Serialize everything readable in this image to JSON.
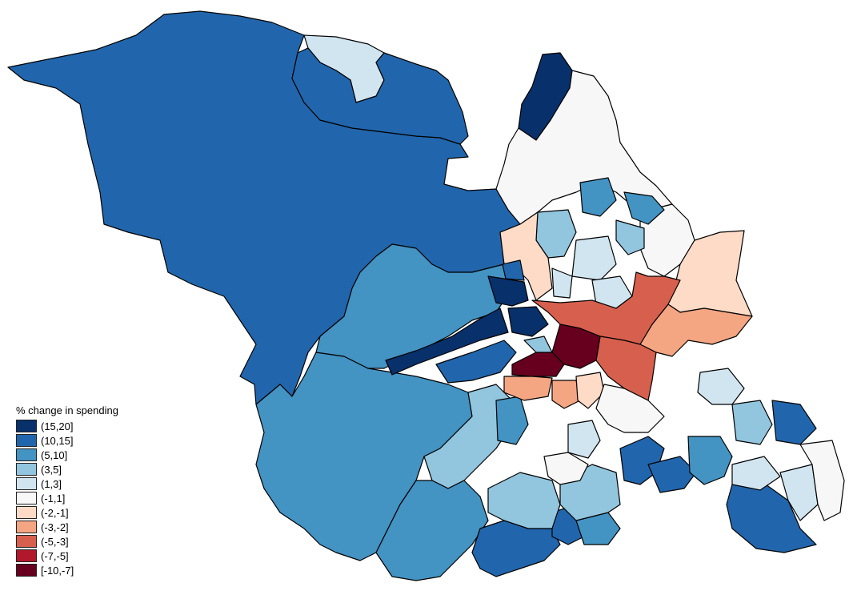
{
  "legend": {
    "title": "% change in spending",
    "entries": [
      {
        "label": "(15,20]",
        "color": "#08306b"
      },
      {
        "label": "(10,15]",
        "color": "#2166ac"
      },
      {
        "label": "(5,10]",
        "color": "#4393c3"
      },
      {
        "label": "(3,5]",
        "color": "#92c5de"
      },
      {
        "label": "(1,3]",
        "color": "#d1e5f0"
      },
      {
        "label": "(-1,1]",
        "color": "#f7f7f7"
      },
      {
        "label": "(-2,-1]",
        "color": "#fddbc7"
      },
      {
        "label": "(-3,-2]",
        "color": "#f4a582"
      },
      {
        "label": "(-5,-3]",
        "color": "#d6604d"
      },
      {
        "label": "(-7,-5]",
        "color": "#b2182b"
      },
      {
        "label": "[-10,-7]",
        "color": "#67001f"
      }
    ]
  },
  "map": {
    "regions": [
      {
        "name": "north-west-moorland",
        "class": "(10,15]"
      },
      {
        "name": "north-enclave",
        "class": "(1,3]"
      },
      {
        "name": "north-enclave-inner",
        "class": "(10,15]"
      },
      {
        "name": "north-east-strip",
        "class": "(15,20]"
      },
      {
        "name": "north-east-white",
        "class": "(-1,1]"
      },
      {
        "name": "east-white",
        "class": "(-1,1]"
      },
      {
        "name": "south-west-large",
        "class": "(5,10]"
      },
      {
        "name": "west-central-mid",
        "class": "(5,10]"
      },
      {
        "name": "south-central-light",
        "class": "(3,5]"
      },
      {
        "name": "south-central-medium",
        "class": "(5,10]"
      },
      {
        "name": "south-east-dark-a",
        "class": "(10,15]"
      },
      {
        "name": "south-east-dark-b",
        "class": "(10,15]"
      },
      {
        "name": "far-south-east",
        "class": "(10,15]"
      },
      {
        "name": "east-light",
        "class": "(1,3]"
      },
      {
        "name": "east-light-2",
        "class": "(3,5]"
      },
      {
        "name": "east-mid",
        "class": "(5,10]"
      },
      {
        "name": "east-dark",
        "class": "(10,15]"
      },
      {
        "name": "north-central-mid",
        "class": "(5,10]"
      },
      {
        "name": "north-central-light",
        "class": "(3,5]"
      },
      {
        "name": "north-central-pale",
        "class": "(1,3]"
      },
      {
        "name": "north-central-pale-2",
        "class": "(1,3]"
      },
      {
        "name": "north-west-peach",
        "class": "(-2,-1]"
      },
      {
        "name": "east-peach",
        "class": "(-2,-1]"
      },
      {
        "name": "east-salmon",
        "class": "(-3,-2]"
      },
      {
        "name": "central-red",
        "class": "(-5,-3]"
      },
      {
        "name": "central-red-2",
        "class": "(-5,-3]"
      },
      {
        "name": "city-centre-darkest",
        "class": "[-10,-7]"
      },
      {
        "name": "city-centre-darkest-2",
        "class": "[-10,-7]"
      },
      {
        "name": "central-salmon",
        "class": "(-3,-2]"
      },
      {
        "name": "central-salmon-2",
        "class": "(-3,-2]"
      },
      {
        "name": "central-peach",
        "class": "(-2,-1]"
      },
      {
        "name": "west-dark-arm",
        "class": "(15,20]"
      },
      {
        "name": "west-dark-upper",
        "class": "(15,20]"
      },
      {
        "name": "west-dark-lower",
        "class": "(15,20]"
      },
      {
        "name": "west-blue-arm",
        "class": "(10,15]"
      },
      {
        "name": "west-blue-small",
        "class": "(10,15]"
      },
      {
        "name": "central-light-blue",
        "class": "(3,5]"
      },
      {
        "name": "south-pale",
        "class": "(1,3]"
      },
      {
        "name": "south-white",
        "class": "(-1,1]"
      },
      {
        "name": "south-white-2",
        "class": "(-1,1]"
      },
      {
        "name": "south-mid-a",
        "class": "(5,10]"
      },
      {
        "name": "south-mid-b",
        "class": "(5,10]"
      },
      {
        "name": "south-dark-a",
        "class": "(10,15]"
      },
      {
        "name": "south-dark-b",
        "class": "(10,15]"
      },
      {
        "name": "south-light-a",
        "class": "(3,5]"
      },
      {
        "name": "south-light-b",
        "class": "(3,5]"
      },
      {
        "name": "east-pale-a",
        "class": "(1,3]"
      },
      {
        "name": "east-pale-b",
        "class": "(1,3]"
      },
      {
        "name": "east-white-2",
        "class": "(-1,1]"
      },
      {
        "name": "north-central-mid-2",
        "class": "(5,10]"
      },
      {
        "name": "north-central-light-2",
        "class": "(3,5]"
      },
      {
        "name": "north-central-pale-3",
        "class": "(1,3]"
      }
    ]
  }
}
